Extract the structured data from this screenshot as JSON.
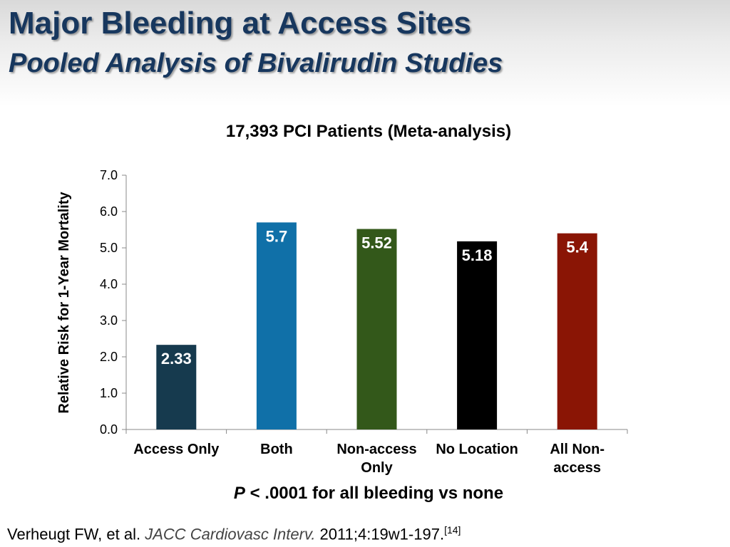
{
  "slide": {
    "title": "Major Bleeding at Access Sites",
    "subtitle": "Pooled Analysis of Bivalirudin Studies"
  },
  "chart_data": {
    "type": "bar",
    "title": "17,393 PCI Patients (Meta-analysis)",
    "xlabel": "",
    "ylabel": "Relative Risk for 1-Year Mortality",
    "ylim": [
      0,
      7
    ],
    "yticks": [
      "0.0",
      "1.0",
      "2.0",
      "3.0",
      "4.0",
      "5.0",
      "6.0",
      "7.0"
    ],
    "grid": false,
    "categories": [
      [
        "Access Only"
      ],
      [
        "Both"
      ],
      [
        "Non-access",
        "Only"
      ],
      [
        "No Location"
      ],
      [
        "All Non-",
        "access"
      ]
    ],
    "values": [
      2.33,
      5.7,
      5.52,
      5.18,
      5.4
    ],
    "value_labels": [
      "2.33",
      "5.7",
      "5.52",
      "5.18",
      "5.4"
    ],
    "colors": [
      "#163a4e",
      "#1070a8",
      "#33581a",
      "#000000",
      "#8a1505"
    ],
    "note_p": "P",
    "note_rest": " < .0001 for all bleeding vs none"
  },
  "citation": {
    "authors": "Verheugt FW, et al. ",
    "journal": "JACC Cardiovasc Interv.",
    "details": " 2011;4:19w1-197.",
    "ref": "[14]"
  }
}
